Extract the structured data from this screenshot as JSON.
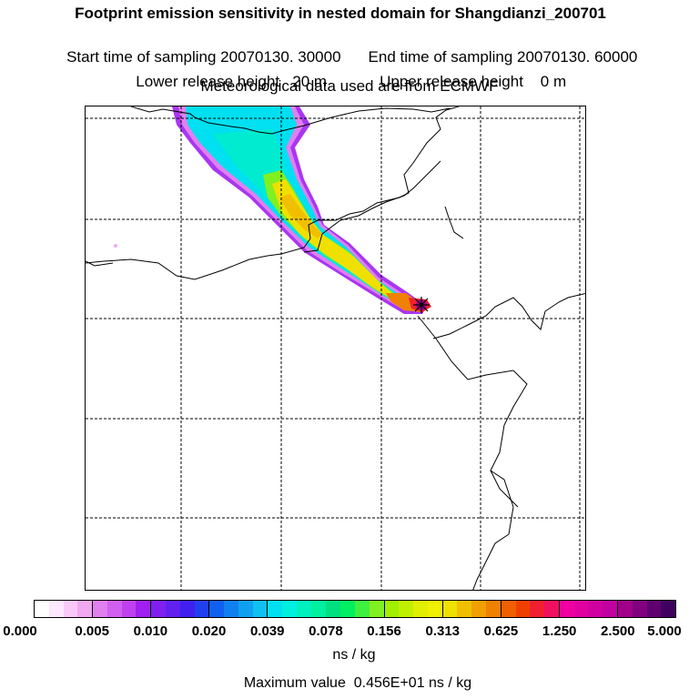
{
  "header": {
    "title": "Footprint emission sensitivity in nested domain for Shangdianzi_200701",
    "start_time": "Start time of sampling 20070130. 30000",
    "end_time": "End time of sampling 20070130. 60000",
    "lower_height": "Lower release height   20 m",
    "upper_height": "Upper release height    0 m",
    "met_data": "Meteorological data used are from ECMWF"
  },
  "colorbar": {
    "labels": [
      "0.000",
      "0.005",
      "0.010",
      "0.020",
      "0.039",
      "0.078",
      "0.156",
      "0.313",
      "0.625",
      "1.250",
      "2.500",
      "5.000"
    ],
    "colors": [
      [
        "#ffffff",
        "#fde8fd",
        "#f8c8f8",
        "#f0a8f0"
      ],
      [
        "#e080f0",
        "#d060f0",
        "#c040f0",
        "#a020f0"
      ],
      [
        "#8020f0",
        "#6020f0",
        "#4020f0",
        "#2040f0"
      ],
      [
        "#1060f0",
        "#1080f0",
        "#10a0f0",
        "#10c0f0"
      ],
      [
        "#00e0f0",
        "#00f0e0",
        "#00f0c0",
        "#00f0a0"
      ],
      [
        "#00e080",
        "#00f060",
        "#40f040",
        "#80f020"
      ],
      [
        "#a0f000",
        "#c0f000",
        "#e0f000",
        "#f0f000"
      ],
      [
        "#f0e000",
        "#f0c000",
        "#f0a000",
        "#f08000"
      ],
      [
        "#f06000",
        "#f04000",
        "#f02030",
        "#f01060"
      ],
      [
        "#f000a0",
        "#e000a0",
        "#d000a0",
        "#c000a0"
      ],
      [
        "#a0008a",
        "#800080",
        "#600070",
        "#400060"
      ]
    ],
    "units": "ns / kg"
  },
  "footer": {
    "max_value": "Maximum value  0.456E+01 ns / kg"
  }
}
